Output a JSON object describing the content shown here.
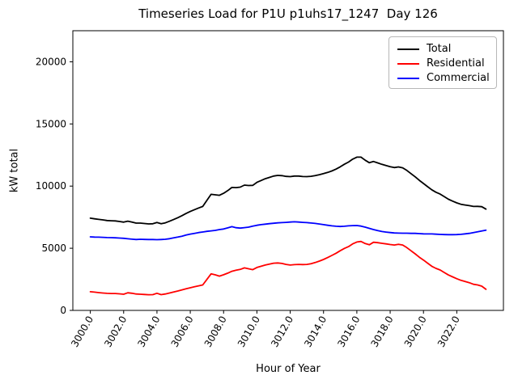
{
  "chart_data": {
    "type": "line",
    "title": "Timeseries Load for P1U p1uhs17_1247  Day 126",
    "xlabel": "Hour of Year",
    "ylabel": "kW total",
    "xlim": [
      2998.95,
      3024.8
    ],
    "ylim": [
      0,
      22500
    ],
    "grid": false,
    "legend_position": "upper right",
    "x_tick_rotation": 60,
    "x_ticks": [
      3000,
      3002,
      3004,
      3006,
      3008,
      3010,
      3012,
      3014,
      3016,
      3018,
      3020,
      3022
    ],
    "x_tick_labels": [
      "3000.0",
      "3002.0",
      "3004.0",
      "3006.0",
      "3008.0",
      "3010.0",
      "3012.0",
      "3014.0",
      "3016.0",
      "3018.0",
      "3020.0",
      "3022.0"
    ],
    "y_ticks": [
      0,
      5000,
      10000,
      15000,
      20000
    ],
    "y_tick_labels": [
      "0",
      "5000",
      "10000",
      "15000",
      "20000"
    ],
    "x": [
      3000.0,
      3000.25,
      3000.5,
      3000.75,
      3001.0,
      3001.25,
      3001.5,
      3001.75,
      3002.0,
      3002.25,
      3002.5,
      3002.75,
      3003.0,
      3003.25,
      3003.5,
      3003.75,
      3004.0,
      3004.25,
      3004.5,
      3004.75,
      3005.0,
      3005.25,
      3005.5,
      3005.75,
      3006.0,
      3006.25,
      3006.5,
      3006.75,
      3007.0,
      3007.25,
      3007.5,
      3007.75,
      3008.0,
      3008.25,
      3008.5,
      3008.75,
      3009.0,
      3009.25,
      3009.5,
      3009.75,
      3010.0,
      3010.25,
      3010.5,
      3010.75,
      3011.0,
      3011.25,
      3011.5,
      3011.75,
      3012.0,
      3012.25,
      3012.5,
      3012.75,
      3013.0,
      3013.25,
      3013.5,
      3013.75,
      3014.0,
      3014.25,
      3014.5,
      3014.75,
      3015.0,
      3015.25,
      3015.5,
      3015.75,
      3016.0,
      3016.25,
      3016.5,
      3016.75,
      3017.0,
      3017.25,
      3017.5,
      3017.75,
      3018.0,
      3018.25,
      3018.5,
      3018.75,
      3019.0,
      3019.25,
      3019.5,
      3019.75,
      3020.0,
      3020.25,
      3020.5,
      3020.75,
      3021.0,
      3021.25,
      3021.5,
      3021.75,
      3022.0,
      3022.25,
      3022.5,
      3022.75,
      3023.0,
      3023.25,
      3023.5,
      3023.75
    ],
    "series": [
      {
        "name": "Total",
        "color": "#000000",
        "values": [
          7420,
          7370,
          7320,
          7280,
          7230,
          7210,
          7200,
          7150,
          7100,
          7180,
          7110,
          7020,
          7020,
          6990,
          6960,
          6970,
          7070,
          6970,
          7040,
          7170,
          7310,
          7460,
          7620,
          7800,
          7960,
          8100,
          8240,
          8360,
          8860,
          9340,
          9300,
          9260,
          9420,
          9640,
          9890,
          9880,
          9920,
          10080,
          10050,
          10060,
          10300,
          10450,
          10590,
          10700,
          10810,
          10860,
          10840,
          10780,
          10760,
          10810,
          10810,
          10770,
          10760,
          10790,
          10850,
          10920,
          11000,
          11100,
          11220,
          11370,
          11550,
          11760,
          11930,
          12170,
          12330,
          12330,
          12080,
          11880,
          11980,
          11870,
          11750,
          11650,
          11560,
          11490,
          11540,
          11470,
          11260,
          11000,
          10750,
          10460,
          10210,
          9950,
          9700,
          9510,
          9360,
          9150,
          8940,
          8790,
          8650,
          8540,
          8480,
          8430,
          8360,
          8370,
          8340,
          8150
        ]
      },
      {
        "name": "Residential",
        "color": "#ff0000",
        "values": [
          1500,
          1470,
          1430,
          1400,
          1370,
          1360,
          1360,
          1330,
          1300,
          1420,
          1380,
          1320,
          1300,
          1280,
          1260,
          1270,
          1380,
          1270,
          1320,
          1400,
          1480,
          1560,
          1650,
          1740,
          1820,
          1900,
          1980,
          2050,
          2500,
          2940,
          2860,
          2760,
          2870,
          3000,
          3150,
          3230,
          3300,
          3420,
          3350,
          3280,
          3450,
          3550,
          3650,
          3720,
          3800,
          3820,
          3780,
          3700,
          3650,
          3680,
          3700,
          3690,
          3700,
          3760,
          3850,
          3970,
          4100,
          4250,
          4420,
          4600,
          4800,
          4990,
          5130,
          5350,
          5500,
          5550,
          5380,
          5280,
          5480,
          5450,
          5400,
          5350,
          5300,
          5260,
          5320,
          5260,
          5050,
          4800,
          4550,
          4280,
          4050,
          3800,
          3550,
          3380,
          3250,
          3050,
          2850,
          2700,
          2550,
          2420,
          2320,
          2230,
          2100,
          2050,
          1950,
          1700
        ]
      },
      {
        "name": "Commercial",
        "color": "#0000ff",
        "values": [
          5920,
          5900,
          5890,
          5880,
          5860,
          5850,
          5840,
          5820,
          5800,
          5760,
          5730,
          5700,
          5720,
          5710,
          5700,
          5700,
          5690,
          5700,
          5720,
          5770,
          5830,
          5900,
          5970,
          6060,
          6140,
          6200,
          6260,
          6310,
          6360,
          6400,
          6440,
          6500,
          6550,
          6640,
          6740,
          6650,
          6620,
          6660,
          6700,
          6780,
          6850,
          6900,
          6940,
          6980,
          7010,
          7040,
          7060,
          7080,
          7110,
          7130,
          7110,
          7080,
          7060,
          7030,
          7000,
          6950,
          6900,
          6850,
          6800,
          6770,
          6750,
          6770,
          6800,
          6820,
          6830,
          6780,
          6700,
          6600,
          6500,
          6420,
          6350,
          6300,
          6260,
          6230,
          6220,
          6210,
          6210,
          6200,
          6200,
          6180,
          6160,
          6150,
          6150,
          6130,
          6110,
          6100,
          6090,
          6090,
          6100,
          6120,
          6160,
          6200,
          6260,
          6320,
          6390,
          6450
        ]
      }
    ]
  }
}
